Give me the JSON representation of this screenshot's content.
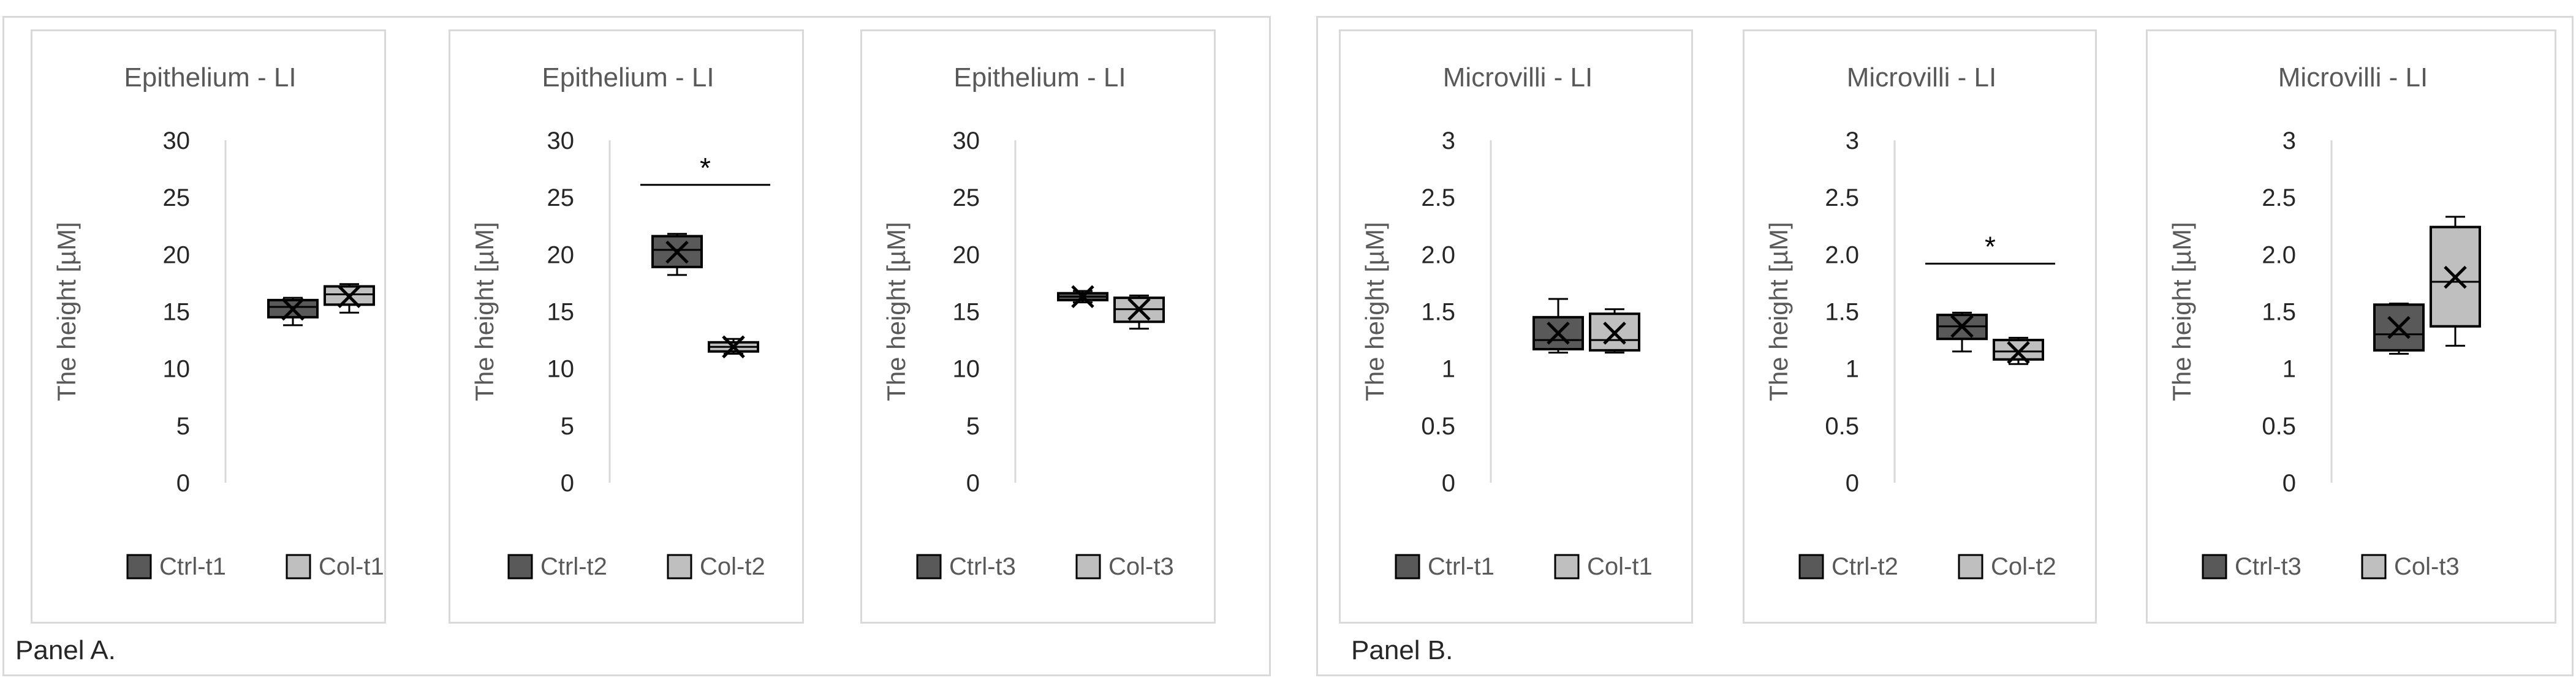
{
  "panels": [
    {
      "label": "Panel A."
    },
    {
      "label": "Panel B."
    }
  ],
  "colors": {
    "ctrl_fill": "#595959",
    "col_fill": "#bfbfbf",
    "stroke": "#000000",
    "axis": "#d9d9d9",
    "text": "#595959"
  },
  "chart_data": [
    {
      "type": "box",
      "title": "Epithelium - LI",
      "ylabel": "The height [µM]",
      "ylim": [
        0,
        30
      ],
      "yticks": [
        "0",
        "5",
        "10",
        "15",
        "20",
        "25",
        "30"
      ],
      "legend": [
        "Ctrl-t1",
        "Col-t1"
      ],
      "legend_position": "bottom",
      "grid": false,
      "significance": "",
      "series": [
        {
          "name": "Ctrl-t1",
          "min": 13.8,
          "q1": 14.5,
          "median": 15.4,
          "q3": 16.0,
          "max": 16.2,
          "mean": 15.2
        },
        {
          "name": "Col-t1",
          "min": 14.9,
          "q1": 15.6,
          "median": 16.5,
          "q3": 17.2,
          "max": 17.4,
          "mean": 16.3
        }
      ]
    },
    {
      "type": "box",
      "title": "Epithelium - LI",
      "ylabel": "The height [µM]",
      "ylim": [
        0,
        30
      ],
      "yticks": [
        "0",
        "5",
        "10",
        "15",
        "20",
        "25",
        "30"
      ],
      "legend": [
        "Ctrl-t2",
        "Col-t2"
      ],
      "legend_position": "bottom",
      "grid": false,
      "significance": "*",
      "series": [
        {
          "name": "Ctrl-t2",
          "min": 18.2,
          "q1": 18.9,
          "median": 20.4,
          "q3": 21.6,
          "max": 21.8,
          "mean": 20.2
        },
        {
          "name": "Col-t2",
          "min": 11.3,
          "q1": 11.5,
          "median": 11.9,
          "q3": 12.3,
          "max": 12.6,
          "mean": 11.9
        }
      ]
    },
    {
      "type": "box",
      "title": "Epithelium - LI",
      "ylabel": "The height [µM]",
      "ylim": [
        0,
        30
      ],
      "yticks": [
        "0",
        "5",
        "10",
        "15",
        "20",
        "25",
        "30"
      ],
      "legend": [
        "Ctrl-t3",
        "Col-t3"
      ],
      "legend_position": "bottom",
      "grid": false,
      "significance": "",
      "series": [
        {
          "name": "Ctrl-t3",
          "min": 15.8,
          "q1": 16.0,
          "median": 16.3,
          "q3": 16.6,
          "max": 16.8,
          "mean": 16.3
        },
        {
          "name": "Col-t3",
          "min": 13.5,
          "q1": 14.1,
          "median": 15.2,
          "q3": 16.2,
          "max": 16.4,
          "mean": 15.2
        }
      ]
    },
    {
      "type": "box",
      "title": "Microvilli - LI",
      "ylabel": "The height [µM]",
      "ylim": [
        0,
        3
      ],
      "yticks": [
        "0",
        "0.5",
        "1",
        "1.5",
        "2.0",
        "2.5",
        "3"
      ],
      "legend": [
        "Ctrl-t1",
        "Col-t1"
      ],
      "legend_position": "bottom",
      "grid": false,
      "significance": "",
      "series": [
        {
          "name": "Ctrl-t1",
          "min": 1.14,
          "q1": 1.17,
          "median": 1.25,
          "q3": 1.45,
          "max": 1.61,
          "mean": 1.31
        },
        {
          "name": "Col-t1",
          "min": 1.14,
          "q1": 1.16,
          "median": 1.25,
          "q3": 1.48,
          "max": 1.52,
          "mean": 1.31
        }
      ]
    },
    {
      "type": "box",
      "title": "Microvilli - LI",
      "ylabel": "The height [µM]",
      "ylim": [
        0,
        3
      ],
      "yticks": [
        "0",
        "0.5",
        "1",
        "1.5",
        "2.0",
        "2.5",
        "3"
      ],
      "legend": [
        "Ctrl-t2",
        "Col-t2"
      ],
      "legend_position": "bottom",
      "grid": false,
      "significance": "*",
      "series": [
        {
          "name": "Ctrl-t2",
          "min": 1.15,
          "q1": 1.26,
          "median": 1.37,
          "q3": 1.47,
          "max": 1.49,
          "mean": 1.37
        },
        {
          "name": "Col-t2",
          "min": 1.04,
          "q1": 1.08,
          "median": 1.15,
          "q3": 1.25,
          "max": 1.27,
          "mean": 1.14
        }
      ]
    },
    {
      "type": "box",
      "title": "Microvilli - LI",
      "ylabel": "The height [µM]",
      "ylim": [
        0,
        3
      ],
      "yticks": [
        "0",
        "0.5",
        "1",
        "1.5",
        "2.0",
        "2.5",
        "3"
      ],
      "legend": [
        "Ctrl-t3",
        "Col-t3"
      ],
      "legend_position": "bottom",
      "grid": false,
      "significance": "",
      "series": [
        {
          "name": "Ctrl-t3",
          "min": 1.13,
          "q1": 1.16,
          "median": 1.3,
          "q3": 1.56,
          "max": 1.57,
          "mean": 1.36
        },
        {
          "name": "Col-t3",
          "min": 1.2,
          "q1": 1.37,
          "median": 1.76,
          "q3": 2.24,
          "max": 2.33,
          "mean": 1.8
        }
      ]
    }
  ]
}
